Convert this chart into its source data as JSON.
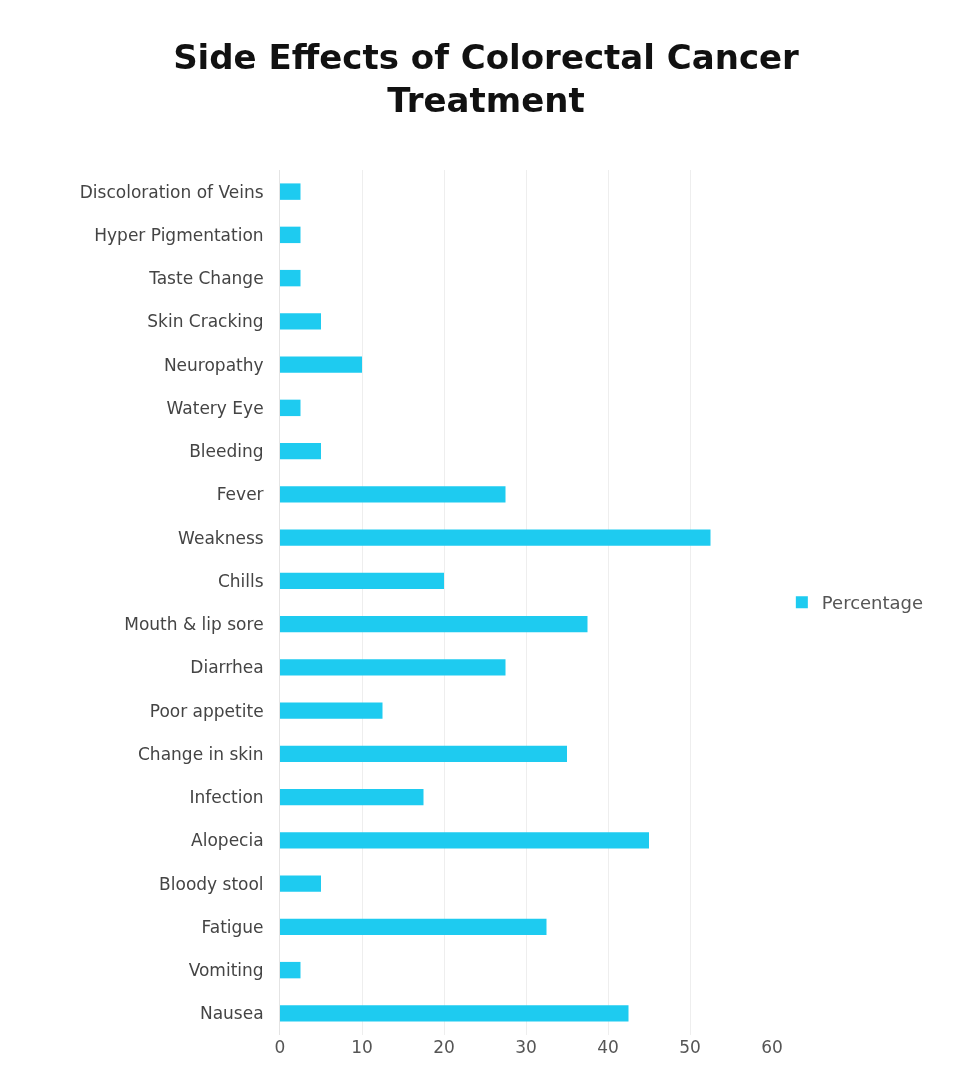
{
  "chart_data": {
    "type": "bar",
    "orientation": "horizontal",
    "title": "Side Effects of Colorectal Cancer Treatment",
    "categories": [
      "Discoloration of Veins",
      "Hyper Pigmentation",
      "Taste Change",
      "Skin Cracking",
      "Neuropathy",
      "Watery Eye",
      "Bleeding",
      "Fever",
      "Weakness",
      "Chills",
      "Mouth & lip sore",
      "Diarrhea",
      "Poor appetite",
      "Change in skin",
      "Infection",
      "Alopecia",
      "Bloody stool",
      "Fatigue",
      "Vomiting",
      "Nausea"
    ],
    "series": [
      {
        "name": "Percentage",
        "color": "#1ecbf0",
        "values": [
          2.5,
          2.5,
          2.5,
          5,
          10,
          2.5,
          5,
          27.5,
          52.5,
          20,
          37.5,
          27.5,
          12.5,
          35,
          17.5,
          45,
          5,
          32.5,
          2.5,
          42.5
        ]
      }
    ],
    "xlim": [
      0,
      60
    ],
    "xticks": [
      0,
      10,
      20,
      30,
      40,
      50,
      60
    ],
    "grid": "x",
    "legend": "right"
  }
}
